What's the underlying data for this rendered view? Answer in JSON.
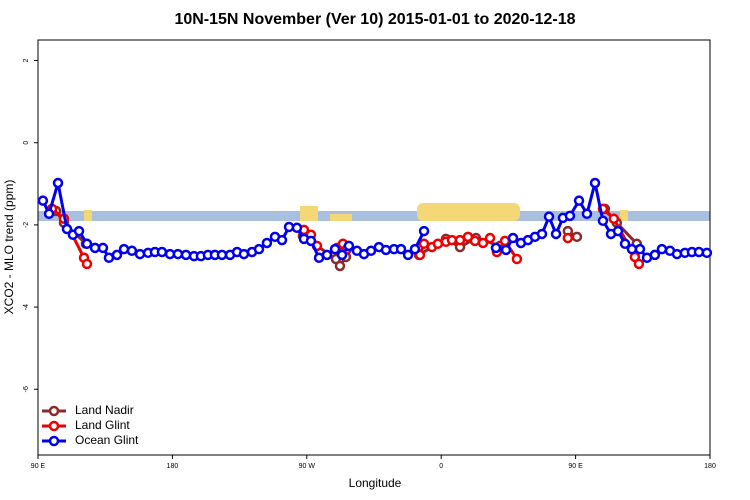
{
  "chart_data": {
    "type": "line",
    "title": "10N-15N November (Ver 10)   2015-01-01 to 2020-12-18",
    "x_label": "Longitude",
    "y_label": "XCO2 - MLO trend (ppm)",
    "xlim": [
      90,
      540
    ],
    "ylim": [
      -7.6,
      2.5
    ],
    "xticks": [
      {
        "value": 90,
        "label": "90 E"
      },
      {
        "value": 180,
        "label": "180"
      },
      {
        "value": 270,
        "label": "90 W"
      },
      {
        "value": 360,
        "label": "0"
      },
      {
        "value": 450,
        "label": "90 E"
      },
      {
        "value": 540,
        "label": "180"
      }
    ],
    "yticks": [
      2,
      0,
      -2,
      -4,
      -6
    ],
    "legend": "bottom-left",
    "series": [
      {
        "name": "Land Nadir",
        "color": "#8b2a2a",
        "x": [
          102.1,
          107.4,
          122.1,
          null,
          267.4,
          289.5,
          292.2,
          296.2,
          null,
          345.1,
          363.2,
          372.6,
          383.3,
          399.4,
          null,
          444.8,
          450.9,
          null,
          469.6,
          477.6,
          491
        ],
        "values": [
          -1.66,
          -1.95,
          -2.46,
          null,
          -2.27,
          -2.83,
          -3.0,
          -2.78,
          null,
          -2.73,
          -2.34,
          -2.54,
          -2.32,
          -2.51,
          null,
          -2.15,
          -2.29,
          null,
          -1.61,
          -1.95,
          -2.46
        ]
      },
      {
        "name": "Land Glint",
        "color": "#ee0000",
        "x": [
          99.4,
          107.4,
          120.8,
          122.8,
          null,
          268.1,
          272.8,
          276.8,
          null,
          290.2,
          294.2,
          296.9,
          null,
          345.8,
          348.5,
          353.8,
          357.8,
          363.2,
          367.2,
          372.6,
          377.9,
          382.6,
          388,
          392.7,
          397.3,
          402.7,
          410.7,
          null,
          444.8,
          null,
          468.3,
          475.6,
          489.7,
          492.4
        ],
        "values": [
          -1.61,
          -1.85,
          -2.8,
          -2.95,
          null,
          -2.12,
          -2.24,
          -2.51,
          null,
          -2.56,
          -2.46,
          -2.59,
          null,
          -2.73,
          -2.46,
          -2.54,
          -2.46,
          -2.41,
          -2.37,
          -2.37,
          -2.29,
          -2.39,
          -2.44,
          -2.32,
          -2.66,
          -2.39,
          -2.83,
          null,
          -2.32,
          null,
          -1.61,
          -1.85,
          -2.78,
          -2.95
        ]
      },
      {
        "name": "Ocean Glint",
        "color": "#0000ee",
        "x": [
          93.3,
          97.4,
          103.4,
          109.4,
          113.4,
          117.5,
          122.8,
          128.2,
          133.5,
          137.5,
          142.9,
          147.6,
          152.9,
          158.3,
          163.7,
          168.3,
          173,
          178.4,
          183.7,
          189.1,
          194.5,
          199.1,
          203.8,
          208.5,
          213.2,
          218.6,
          223.3,
          227.9,
          233.3,
          238,
          243.3,
          248.7,
          253.4,
          258.1,
          263.4,
          268.1,
          272.8,
          278.2,
          283.5,
          288.9,
          293.6,
          298.2,
          303.6,
          308.3,
          313,
          318.3,
          323,
          328.4,
          333.1,
          337.8,
          342.4,
          348.5,
          null,
          396.7,
          403.4,
          408.1,
          413.4,
          418.1,
          422.8,
          427.5,
          432.2,
          436.9,
          441.5,
          446.2,
          452.3,
          457.6,
          463,
          468.3,
          473.7,
          478.4,
          483.1,
          487.7,
          493.1,
          497.8,
          503.1,
          507.8,
          513.2,
          517.9,
          523.2,
          527.9,
          532.6,
          537.9
        ],
        "values": [
          -1.41,
          -1.73,
          -0.98,
          -2.1,
          -2.24,
          -2.15,
          -2.46,
          -2.56,
          -2.56,
          -2.8,
          -2.73,
          -2.59,
          -2.63,
          -2.71,
          -2.68,
          -2.66,
          -2.66,
          -2.71,
          -2.71,
          -2.73,
          -2.76,
          -2.76,
          -2.73,
          -2.73,
          -2.73,
          -2.73,
          -2.66,
          -2.71,
          -2.66,
          -2.59,
          -2.44,
          -2.29,
          -2.37,
          -2.05,
          -2.07,
          -2.34,
          -2.39,
          -2.8,
          -2.73,
          -2.59,
          -2.73,
          -2.51,
          -2.63,
          -2.71,
          -2.63,
          -2.54,
          -2.61,
          -2.59,
          -2.59,
          -2.73,
          -2.59,
          -2.15,
          null,
          -2.56,
          -2.61,
          -2.32,
          -2.44,
          -2.37,
          -2.29,
          -2.22,
          -1.8,
          -2.22,
          -1.83,
          -1.78,
          -1.41,
          -1.73,
          -0.98,
          -1.9,
          -2.22,
          -2.15,
          -2.46,
          -2.59,
          -2.59,
          -2.8,
          -2.73,
          -2.59,
          -2.63,
          -2.71,
          -2.68,
          -2.66,
          -2.66,
          -2.68
        ]
      }
    ]
  }
}
